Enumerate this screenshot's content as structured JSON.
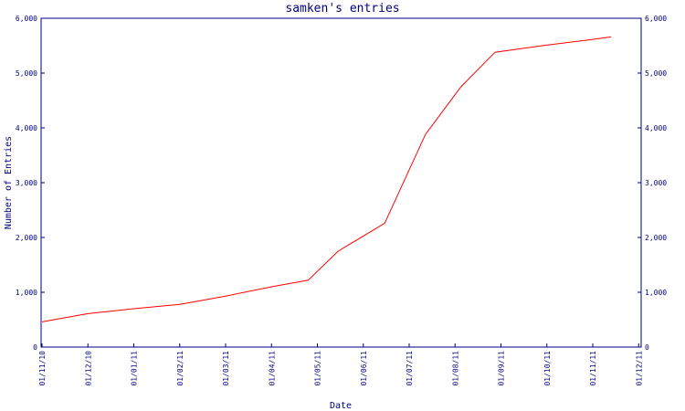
{
  "chart_data": {
    "type": "line",
    "title": "samken's entries",
    "xlabel": "Date",
    "ylabel": "Number of Entries",
    "ylim": [
      0,
      6000
    ],
    "y_ticks": [
      {
        "value": 0,
        "label": "0"
      },
      {
        "value": 1000,
        "label": "1,000"
      },
      {
        "value": 2000,
        "label": "2,000"
      },
      {
        "value": 3000,
        "label": "3,000"
      },
      {
        "value": 4000,
        "label": "4,000"
      },
      {
        "value": 5000,
        "label": "5,000"
      },
      {
        "value": 6000,
        "label": "6,000"
      }
    ],
    "x_ticks": [
      "01/11/10",
      "01/12/10",
      "01/01/11",
      "01/02/11",
      "01/03/11",
      "01/04/11",
      "01/05/11",
      "01/06/11",
      "01/07/11",
      "01/08/11",
      "01/09/11",
      "01/10/11",
      "01/11/11",
      "01/12/11"
    ],
    "grid": false,
    "right_axis": true,
    "colors": {
      "axis": "#000080",
      "text": "#000080",
      "line": "#ff0000"
    },
    "series": [
      {
        "x": [
          "2010-11-01",
          "2010-12-01",
          "2011-01-01",
          "2011-02-01",
          "2011-03-01",
          "2011-04-01",
          "2011-04-25",
          "2011-05-15",
          "2011-06-15",
          "2011-07-12",
          "2011-08-05",
          "2011-08-28",
          "2011-09-28",
          "2011-10-28",
          "2011-11-13"
        ],
        "values": [
          460,
          610,
          700,
          780,
          930,
          1100,
          1220,
          1750,
          2260,
          3880,
          4750,
          5380,
          5500,
          5600,
          5660
        ]
      }
    ]
  }
}
